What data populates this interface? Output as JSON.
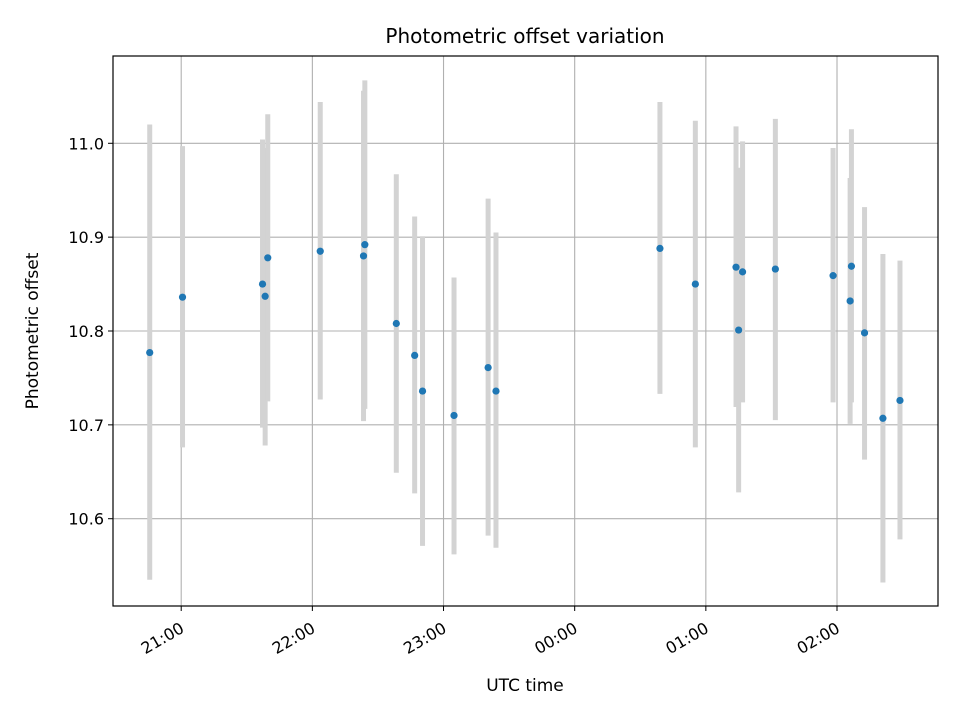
{
  "chart_data": {
    "type": "scatter",
    "title": "Photometric offset variation",
    "xlabel": "UTC time",
    "ylabel": "Photometric offset",
    "x_unit": "hours since midnight UTC (negative = previous day)",
    "xlim": [
      -3.52,
      2.77
    ],
    "ylim": [
      10.507,
      11.093
    ],
    "xticks": [
      {
        "value": -3,
        "label": "21:00"
      },
      {
        "value": -2,
        "label": "22:00"
      },
      {
        "value": -1,
        "label": "23:00"
      },
      {
        "value": 0,
        "label": "00:00"
      },
      {
        "value": 1,
        "label": "01:00"
      },
      {
        "value": 2,
        "label": "02:00"
      }
    ],
    "yticks": [
      {
        "value": 10.6,
        "label": "10.6"
      },
      {
        "value": 10.7,
        "label": "10.7"
      },
      {
        "value": 10.8,
        "label": "10.8"
      },
      {
        "value": 10.9,
        "label": "10.9"
      },
      {
        "value": 11.0,
        "label": "11.0"
      }
    ],
    "grid": true,
    "colors": {
      "point": "#1f77b4",
      "errorbar": "#d3d3d3",
      "grid": "#b0b0b0"
    },
    "points": [
      {
        "x": -3.24,
        "y": 10.777,
        "low": 10.535,
        "high": 11.02
      },
      {
        "x": -2.99,
        "y": 10.836,
        "low": 10.676,
        "high": 10.997
      },
      {
        "x": -2.38,
        "y": 10.85,
        "low": 10.697,
        "high": 11.004
      },
      {
        "x": -2.36,
        "y": 10.837,
        "low": 10.678,
        "high": 10.995
      },
      {
        "x": -2.34,
        "y": 10.878,
        "low": 10.725,
        "high": 11.031
      },
      {
        "x": -1.94,
        "y": 10.885,
        "low": 10.727,
        "high": 11.044
      },
      {
        "x": -1.61,
        "y": 10.88,
        "low": 10.704,
        "high": 11.056
      },
      {
        "x": -1.6,
        "y": 10.892,
        "low": 10.717,
        "high": 11.067
      },
      {
        "x": -1.36,
        "y": 10.808,
        "low": 10.649,
        "high": 10.967
      },
      {
        "x": -1.22,
        "y": 10.774,
        "low": 10.627,
        "high": 10.922
      },
      {
        "x": -1.16,
        "y": 10.736,
        "low": 10.571,
        "high": 10.901
      },
      {
        "x": -0.92,
        "y": 10.71,
        "low": 10.562,
        "high": 10.857
      },
      {
        "x": -0.66,
        "y": 10.761,
        "low": 10.582,
        "high": 10.941
      },
      {
        "x": -0.6,
        "y": 10.736,
        "low": 10.569,
        "high": 10.905
      },
      {
        "x": 0.65,
        "y": 10.888,
        "low": 10.733,
        "high": 11.044
      },
      {
        "x": 0.92,
        "y": 10.85,
        "low": 10.676,
        "high": 11.024
      },
      {
        "x": 1.23,
        "y": 10.868,
        "low": 10.719,
        "high": 11.018
      },
      {
        "x": 1.25,
        "y": 10.801,
        "low": 10.628,
        "high": 10.974
      },
      {
        "x": 1.28,
        "y": 10.863,
        "low": 10.724,
        "high": 11.002
      },
      {
        "x": 1.53,
        "y": 10.866,
        "low": 10.705,
        "high": 11.026
      },
      {
        "x": 1.97,
        "y": 10.859,
        "low": 10.724,
        "high": 10.995
      },
      {
        "x": 2.1,
        "y": 10.832,
        "low": 10.701,
        "high": 10.963
      },
      {
        "x": 2.11,
        "y": 10.869,
        "low": 10.724,
        "high": 11.015
      },
      {
        "x": 2.21,
        "y": 10.798,
        "low": 10.663,
        "high": 10.932
      },
      {
        "x": 2.35,
        "y": 10.707,
        "low": 10.532,
        "high": 10.882
      },
      {
        "x": 2.48,
        "y": 10.726,
        "low": 10.578,
        "high": 10.875
      }
    ]
  }
}
